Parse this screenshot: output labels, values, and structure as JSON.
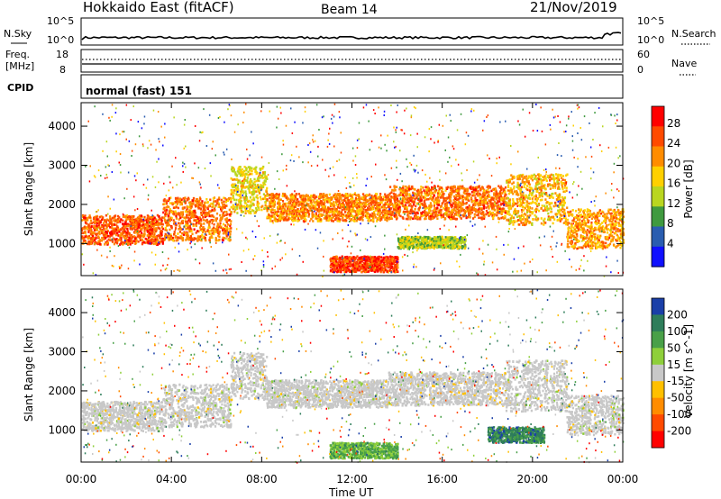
{
  "header": {
    "station": "Hokkaido East (fitACF)",
    "beam": "Beam 14",
    "date": "21/Nov/2019"
  },
  "noise_panel": {
    "left_label": "N.Sky",
    "right_label": "N.Search",
    "top_tick": "10^5",
    "bottom_tick": "10^0",
    "right_top_tick": "10^5",
    "right_bottom_tick": "10^0"
  },
  "freq_panel": {
    "left_label_line1": "Freq.",
    "left_label_line2": "[MHz]",
    "left_ticks": [
      "18",
      "8"
    ],
    "right_label": "Nave",
    "right_ticks": [
      "60",
      "0"
    ]
  },
  "cpid_panel": {
    "label": "CPID",
    "mode_text": "normal (fast) 151"
  },
  "chart_data": [
    {
      "type": "heatmap",
      "panel": "power",
      "ylabel": "Slant Range [km]",
      "y_ticks": [
        "4000",
        "3000",
        "2000",
        "1000"
      ],
      "ylim": [
        180,
        4600
      ],
      "colorbar_label": "Power [dB]",
      "colorbar_ticks": [
        "28",
        "24",
        "20",
        "16",
        "12",
        "8",
        "4"
      ],
      "colorbar_colors": [
        "#ff0000",
        "#ff4a00",
        "#ff8c00",
        "#ffd000",
        "#b9d620",
        "#3f9a3f",
        "#2a5db0",
        "#1010ff"
      ],
      "bands": [
        {
          "t0": 0.0,
          "t1": 3.6,
          "lo": 1000,
          "hi": 1750,
          "tone": 0.9
        },
        {
          "t0": 3.6,
          "t1": 6.6,
          "lo": 1100,
          "hi": 2200,
          "tone": 0.85
        },
        {
          "t0": 6.6,
          "t1": 8.2,
          "lo": 1800,
          "hi": 3000,
          "tone": 0.6
        },
        {
          "t0": 8.2,
          "t1": 13.6,
          "lo": 1600,
          "hi": 2300,
          "tone": 0.8
        },
        {
          "t0": 13.6,
          "t1": 18.8,
          "lo": 1650,
          "hi": 2500,
          "tone": 0.85
        },
        {
          "t0": 18.8,
          "t1": 21.5,
          "lo": 1500,
          "hi": 2800,
          "tone": 0.7
        },
        {
          "t0": 21.5,
          "t1": 24.0,
          "lo": 900,
          "hi": 1900,
          "tone": 0.75
        },
        {
          "t0": 11.0,
          "t1": 14.0,
          "lo": 300,
          "hi": 700,
          "tone": 0.95
        },
        {
          "t0": 14.0,
          "t1": 17.0,
          "lo": 900,
          "hi": 1200,
          "tone": 0.5
        }
      ]
    },
    {
      "type": "heatmap",
      "panel": "velocity",
      "ylabel": "Slant Range [km]",
      "y_ticks": [
        "4000",
        "3000",
        "2000",
        "1000"
      ],
      "ylim": [
        180,
        4600
      ],
      "colorbar_label": "Velocity [m s^-1]",
      "colorbar_ticks": [
        "200",
        "100",
        "50",
        "15",
        "-15",
        "-50",
        "-100",
        "-200"
      ],
      "colorbar_colors": [
        "#1a3fa8",
        "#2e7d5a",
        "#49a048",
        "#8ecf3a",
        "#c8c8c8",
        "#ffc000",
        "#ff8c00",
        "#ff4a00",
        "#ff0000"
      ],
      "bands": [
        {
          "t0": 0.0,
          "t1": 3.6,
          "lo": 1000,
          "hi": 1750,
          "tone": 0.5
        },
        {
          "t0": 3.6,
          "t1": 6.6,
          "lo": 1100,
          "hi": 2200,
          "tone": 0.5
        },
        {
          "t0": 6.6,
          "t1": 8.2,
          "lo": 1800,
          "hi": 3000,
          "tone": 0.5
        },
        {
          "t0": 8.2,
          "t1": 13.6,
          "lo": 1600,
          "hi": 2300,
          "tone": 0.5
        },
        {
          "t0": 13.6,
          "t1": 18.8,
          "lo": 1650,
          "hi": 2500,
          "tone": 0.55
        },
        {
          "t0": 18.8,
          "t1": 21.5,
          "lo": 1500,
          "hi": 2800,
          "tone": 0.5
        },
        {
          "t0": 21.5,
          "t1": 24.0,
          "lo": 900,
          "hi": 1900,
          "tone": 0.5
        },
        {
          "t0": 11.0,
          "t1": 14.0,
          "lo": 300,
          "hi": 700,
          "tone": 0.3
        },
        {
          "t0": 18.0,
          "t1": 20.5,
          "lo": 700,
          "hi": 1100,
          "tone": 0.15
        }
      ]
    }
  ],
  "x_axis": {
    "label": "Time UT",
    "ticks": [
      "00:00",
      "04:00",
      "08:00",
      "12:00",
      "16:00",
      "20:00",
      "00:00"
    ]
  }
}
